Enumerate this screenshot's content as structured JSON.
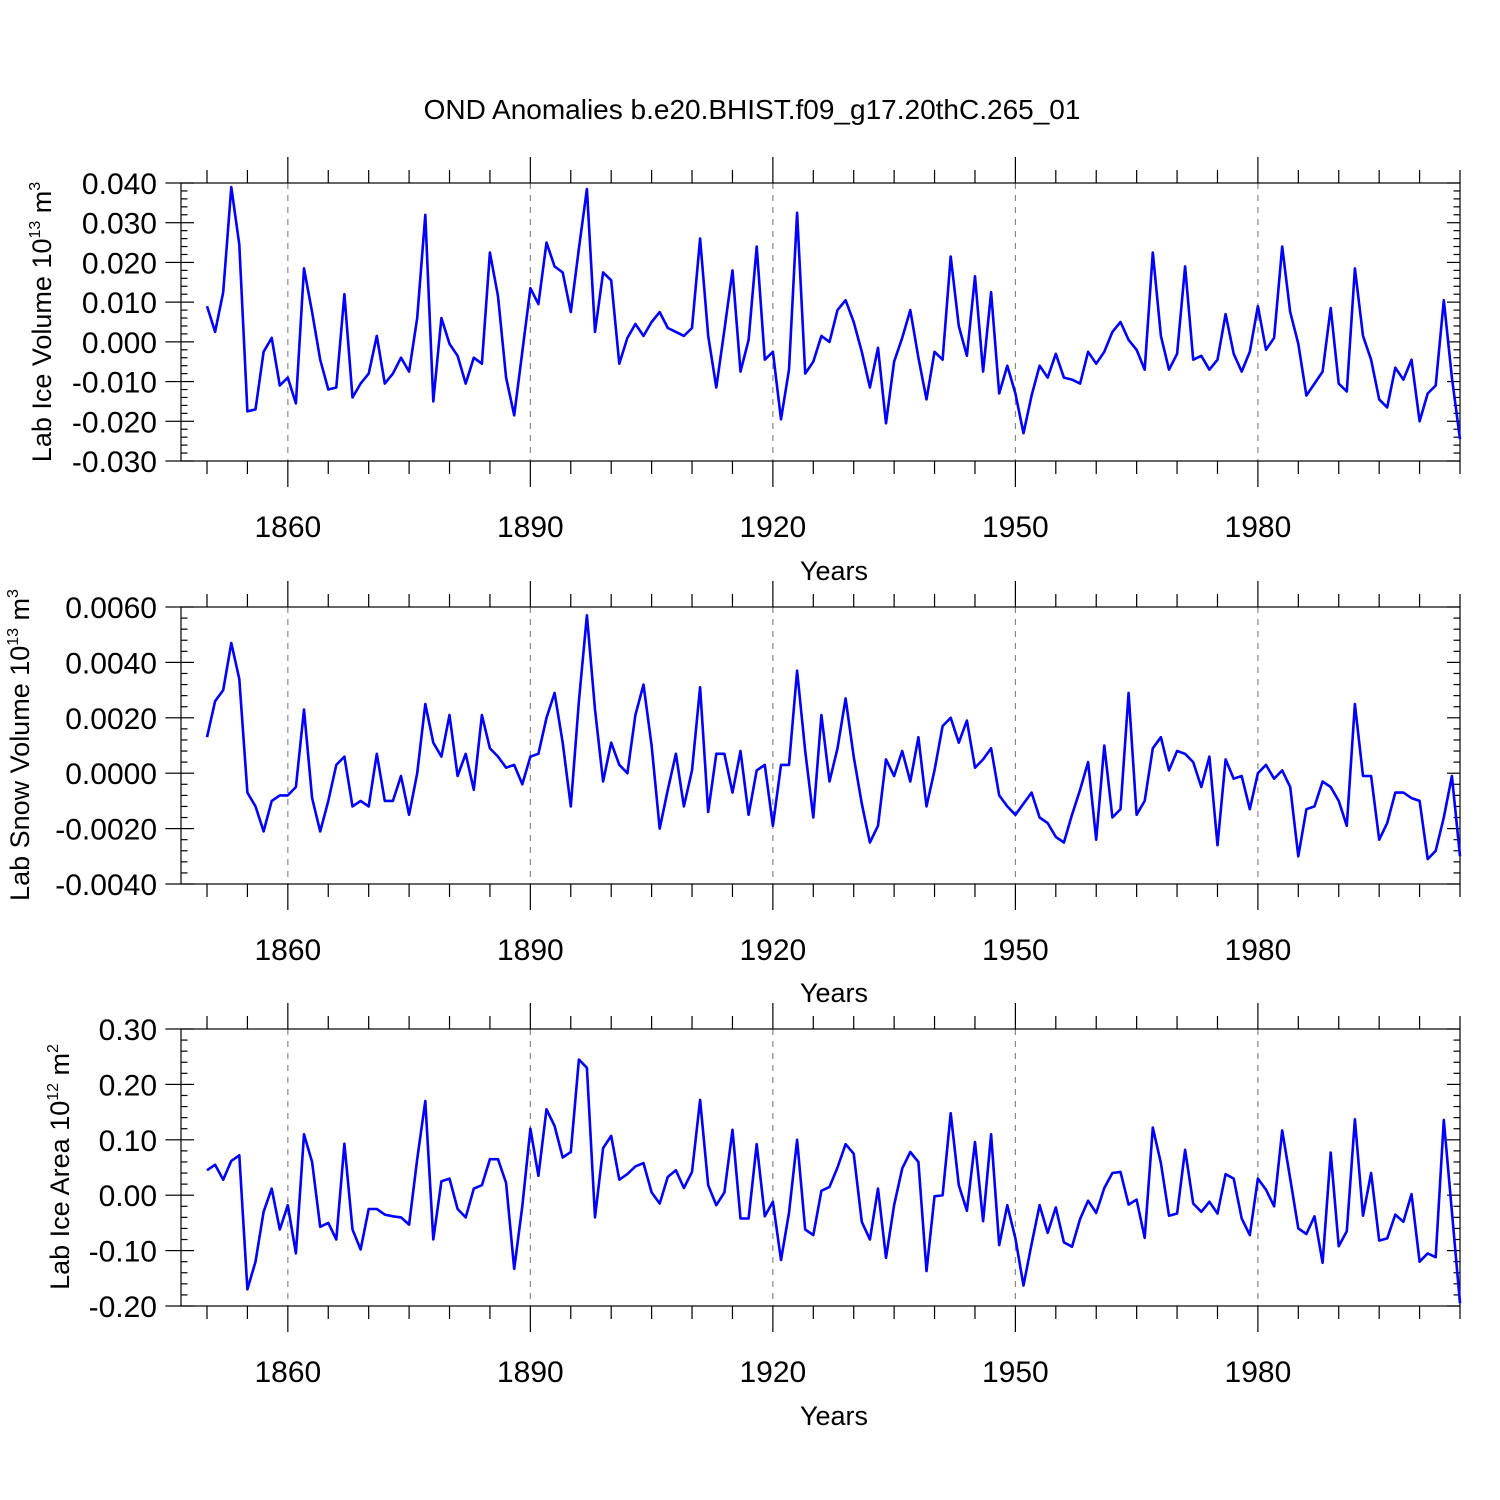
{
  "title": "OND Anomalies b.e20.BHIST.f09_g17.20thC.265_01",
  "colors": {
    "line": "#0000ff",
    "axis": "#000000",
    "grid": "#888888"
  },
  "chart_data": [
    {
      "type": "line",
      "name": "lab-ice-volume",
      "ylabel_main": "Lab Ice Volume 10",
      "ylabel_exp": "13",
      "ylabel_unit": " m",
      "ylabel_unit_exp": "3",
      "xlabel": "Years",
      "xlim": [
        1850,
        2005
      ],
      "ylim": [
        -0.03,
        0.04
      ],
      "yticks": [
        -0.03,
        -0.02,
        -0.01,
        0.0,
        0.01,
        0.02,
        0.03,
        0.04
      ],
      "ytick_labels": [
        "-0.030",
        "-0.020",
        "-0.010",
        "0.000",
        "0.010",
        "0.020",
        "0.030",
        "0.040"
      ],
      "xticks": [
        1860,
        1890,
        1920,
        1950,
        1980
      ],
      "xtick_labels": [
        "1860",
        "1890",
        "1920",
        "1950",
        "1980"
      ],
      "x_start": 1850,
      "values": [
        0.009,
        0.0025,
        0.0125,
        0.039,
        0.0245,
        -0.0175,
        -0.017,
        -0.0025,
        0.001,
        -0.011,
        -0.009,
        -0.0155,
        0.0185,
        0.0075,
        -0.0045,
        -0.012,
        -0.0115,
        0.012,
        -0.014,
        -0.0105,
        -0.008,
        0.0015,
        -0.0105,
        -0.008,
        -0.004,
        -0.0075,
        0.006,
        0.032,
        -0.015,
        0.006,
        -0.0005,
        -0.0035,
        -0.0105,
        -0.004,
        -0.0055,
        0.0225,
        0.0115,
        -0.009,
        -0.0185,
        -0.0025,
        0.0135,
        0.0095,
        0.025,
        0.019,
        0.0175,
        0.0075,
        0.0235,
        0.0385,
        0.0025,
        0.0175,
        0.0155,
        -0.0055,
        0.001,
        0.0045,
        0.0015,
        0.005,
        0.0075,
        0.0035,
        0.0025,
        0.0015,
        0.0035,
        0.026,
        0.0015,
        -0.0115,
        0.003,
        0.018,
        -0.0075,
        0.0005,
        0.024,
        -0.0045,
        -0.0025,
        -0.0195,
        -0.007,
        0.0325,
        -0.008,
        -0.005,
        0.0015,
        0.0,
        0.008,
        0.0105,
        0.005,
        -0.0025,
        -0.0115,
        -0.0015,
        -0.0205,
        -0.005,
        0.001,
        0.008,
        -0.004,
        -0.0145,
        -0.0025,
        -0.0045,
        0.0215,
        0.004,
        -0.0035,
        0.0165,
        -0.0075,
        0.0125,
        -0.013,
        -0.006,
        -0.013,
        -0.023,
        -0.0135,
        -0.006,
        -0.009,
        -0.003,
        -0.009,
        -0.0095,
        -0.0105,
        -0.0025,
        -0.0055,
        -0.0025,
        0.0025,
        0.005,
        0.0005,
        -0.002,
        -0.007,
        0.0225,
        0.0015,
        -0.007,
        -0.003,
        0.019,
        -0.0045,
        -0.0035,
        -0.007,
        -0.0045,
        0.007,
        -0.003,
        -0.0075,
        -0.0025,
        0.009,
        -0.002,
        0.001,
        0.024,
        0.0075,
        -0.0005,
        -0.0135,
        -0.0105,
        -0.0075,
        0.0085,
        -0.0105,
        -0.0125,
        0.0185,
        0.0015,
        -0.0045,
        -0.0145,
        -0.0165,
        -0.0065,
        -0.0095,
        -0.0045,
        -0.02,
        -0.013,
        -0.011,
        0.0105,
        -0.009,
        -0.0245
      ]
    },
    {
      "type": "line",
      "name": "lab-snow-volume",
      "ylabel_main": "Lab Snow Volume 10",
      "ylabel_exp": "13",
      "ylabel_unit": " m",
      "ylabel_unit_exp": "3",
      "xlabel": "Years",
      "xlim": [
        1850,
        2005
      ],
      "ylim": [
        -0.004,
        0.006
      ],
      "yticks": [
        -0.004,
        -0.002,
        0.0,
        0.002,
        0.004,
        0.006
      ],
      "ytick_labels": [
        "-0.0040",
        "-0.0020",
        "0.0000",
        "0.0020",
        "0.0040",
        "0.0060"
      ],
      "xticks": [
        1860,
        1890,
        1920,
        1950,
        1980
      ],
      "xtick_labels": [
        "1860",
        "1890",
        "1920",
        "1950",
        "1980"
      ],
      "x_start": 1850,
      "values": [
        0.0013,
        0.0026,
        0.003,
        0.0047,
        0.0034,
        -0.0007,
        -0.0012,
        -0.0021,
        -0.001,
        -0.0008,
        -0.0008,
        -0.0005,
        0.0023,
        -0.0009,
        -0.0021,
        -0.001,
        0.0003,
        0.0006,
        -0.0012,
        -0.001,
        -0.0012,
        0.0007,
        -0.001,
        -0.001,
        -0.0001,
        -0.0015,
        0.0,
        0.0025,
        0.0011,
        0.0006,
        0.0021,
        -0.0001,
        0.0007,
        -0.0006,
        0.0021,
        0.0009,
        0.0006,
        0.0002,
        0.0003,
        -0.0004,
        0.0006,
        0.0007,
        0.002,
        0.0029,
        0.0011,
        -0.0012,
        0.0026,
        0.0057,
        0.0023,
        -0.0003,
        0.0011,
        0.0003,
        0.0,
        0.0021,
        0.0032,
        0.001,
        -0.002,
        -0.0006,
        0.0007,
        -0.0012,
        0.0001,
        0.0031,
        -0.0014,
        0.0007,
        0.0007,
        -0.0007,
        0.0008,
        -0.0015,
        0.0001,
        0.0003,
        -0.0019,
        0.0003,
        0.0003,
        0.0037,
        0.0008,
        -0.0016,
        0.0021,
        -0.0003,
        0.0009,
        0.0027,
        0.0006,
        -0.0011,
        -0.0025,
        -0.0019,
        0.0005,
        -0.0001,
        0.0008,
        -0.0003,
        0.0013,
        -0.0012,
        0.0001,
        0.0017,
        0.002,
        0.0011,
        0.0019,
        0.0002,
        0.0005,
        0.0009,
        -0.0008,
        -0.0012,
        -0.0015,
        -0.0011,
        -0.0007,
        -0.0016,
        -0.0018,
        -0.0023,
        -0.0025,
        -0.0015,
        -0.0006,
        0.0004,
        -0.0024,
        0.001,
        -0.0016,
        -0.0013,
        0.0029,
        -0.0015,
        -0.001,
        0.0009,
        0.0013,
        0.0001,
        0.0008,
        0.0007,
        0.0004,
        -0.0005,
        0.0006,
        -0.0026,
        0.0005,
        -0.0002,
        -0.0001,
        -0.0013,
        0.0,
        0.0003,
        -0.0002,
        0.0001,
        -0.0005,
        -0.003,
        -0.0013,
        -0.0012,
        -0.0003,
        -0.0005,
        -0.001,
        -0.0019,
        0.0025,
        -0.0001,
        -0.0001,
        -0.0024,
        -0.0018,
        -0.0007,
        -0.0007,
        -0.0009,
        -0.001,
        -0.0031,
        -0.0028,
        -0.0016,
        -0.0001,
        -0.003
      ]
    },
    {
      "type": "line",
      "name": "lab-ice-area",
      "ylabel_main": "Lab Ice Area 10",
      "ylabel_exp": "12",
      "ylabel_unit": " m",
      "ylabel_unit_exp": "2",
      "xlabel": "Years",
      "xlim": [
        1850,
        2005
      ],
      "ylim": [
        -0.2,
        0.3
      ],
      "yticks": [
        -0.2,
        -0.1,
        0.0,
        0.1,
        0.2,
        0.3
      ],
      "ytick_labels": [
        "-0.20",
        "-0.10",
        "0.00",
        "0.10",
        "0.20",
        "0.30"
      ],
      "xticks": [
        1860,
        1890,
        1920,
        1950,
        1980
      ],
      "xtick_labels": [
        "1860",
        "1890",
        "1920",
        "1950",
        "1980"
      ],
      "x_start": 1850,
      "values": [
        0.045,
        0.055,
        0.028,
        0.062,
        0.072,
        -0.17,
        -0.12,
        -0.03,
        0.012,
        -0.062,
        -0.018,
        -0.105,
        0.11,
        0.06,
        -0.057,
        -0.05,
        -0.08,
        0.093,
        -0.062,
        -0.098,
        -0.025,
        -0.025,
        -0.035,
        -0.038,
        -0.04,
        -0.053,
        0.065,
        0.17,
        -0.08,
        0.025,
        0.03,
        -0.025,
        -0.04,
        0.012,
        0.018,
        0.065,
        0.065,
        0.022,
        -0.133,
        -0.02,
        0.12,
        0.035,
        0.155,
        0.125,
        0.068,
        0.078,
        0.245,
        0.23,
        -0.04,
        0.085,
        0.107,
        0.028,
        0.038,
        0.052,
        0.058,
        0.005,
        -0.015,
        0.033,
        0.045,
        0.013,
        0.042,
        0.172,
        0.018,
        -0.018,
        0.005,
        0.118,
        -0.042,
        -0.042,
        0.092,
        -0.038,
        -0.012,
        -0.117,
        -0.032,
        0.1,
        -0.062,
        -0.072,
        0.008,
        0.015,
        0.05,
        0.092,
        0.075,
        -0.048,
        -0.08,
        0.012,
        -0.113,
        -0.018,
        0.048,
        0.078,
        0.06,
        -0.137,
        -0.002,
        0.0,
        0.148,
        0.018,
        -0.028,
        0.096,
        -0.047,
        0.11,
        -0.09,
        -0.018,
        -0.078,
        -0.163,
        -0.088,
        -0.018,
        -0.068,
        -0.022,
        -0.085,
        -0.093,
        -0.043,
        -0.01,
        -0.032,
        0.013,
        0.04,
        0.042,
        -0.017,
        -0.008,
        -0.077,
        0.122,
        0.058,
        -0.037,
        -0.033,
        0.082,
        -0.015,
        -0.03,
        -0.012,
        -0.033,
        0.038,
        0.03,
        -0.042,
        -0.072,
        0.03,
        0.01,
        -0.02,
        0.117,
        0.03,
        -0.06,
        -0.07,
        -0.038,
        -0.122,
        0.077,
        -0.092,
        -0.065,
        0.137,
        -0.037,
        0.04,
        -0.082,
        -0.078,
        -0.035,
        -0.048,
        0.002,
        -0.12,
        -0.105,
        -0.112,
        0.136,
        -0.03,
        -0.195
      ]
    }
  ]
}
